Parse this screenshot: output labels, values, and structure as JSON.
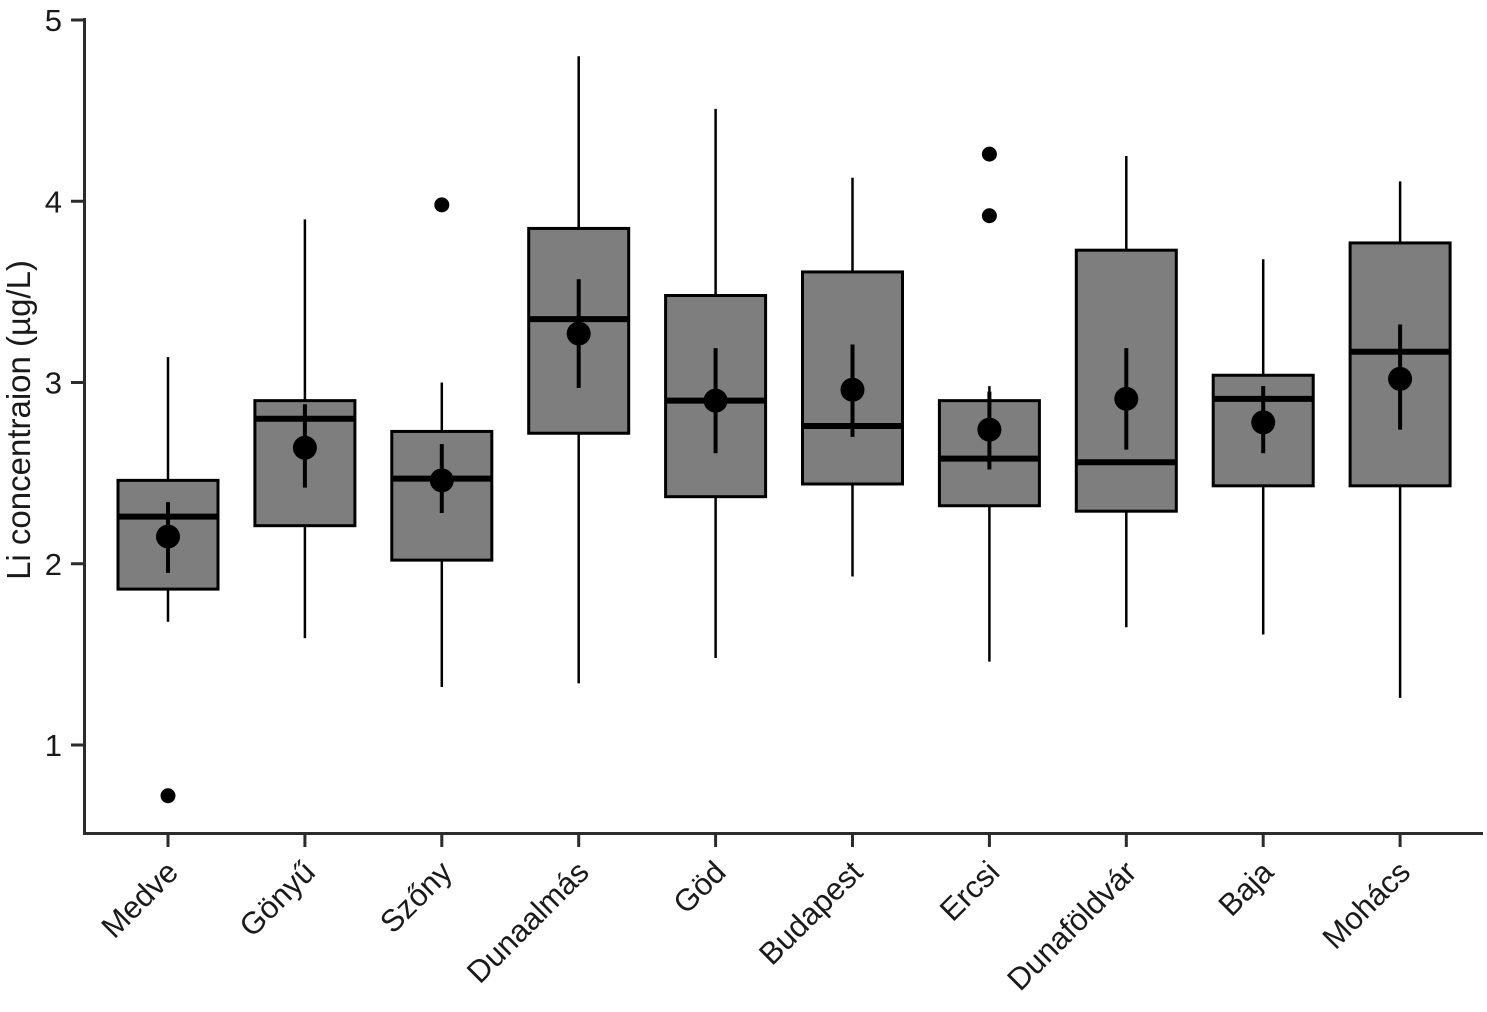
{
  "chart_data": {
    "type": "boxplot",
    "title": "",
    "xlabel": "",
    "ylabel": "Li concentraion (µg/L)",
    "ylim": [
      0.5,
      5
    ],
    "yticks": [
      1,
      2,
      3,
      4,
      5
    ],
    "grid": false,
    "legend": "none",
    "box_fill": "#7e7e7e",
    "stroke_color": "#000000",
    "categories": [
      "Medve",
      "Gönyű",
      "Szőny",
      "Dunaalmás",
      "Göd",
      "Budapest",
      "Ercsi",
      "Dunaföldvár",
      "Baja",
      "Mohács"
    ],
    "boxes": [
      {
        "site": "Medve",
        "whisker_low": 1.68,
        "q1": 1.86,
        "median": 2.26,
        "q3": 2.46,
        "whisker_high": 3.14,
        "mean": 2.15,
        "mean_err": [
          1.95,
          2.34
        ],
        "outliers": [
          0.72
        ]
      },
      {
        "site": "Gönyű",
        "whisker_low": 1.59,
        "q1": 2.21,
        "median": 2.8,
        "q3": 2.9,
        "whisker_high": 3.9,
        "mean": 2.64,
        "mean_err": [
          2.42,
          2.88
        ],
        "outliers": []
      },
      {
        "site": "Szőny",
        "whisker_low": 1.32,
        "q1": 2.02,
        "median": 2.47,
        "q3": 2.73,
        "whisker_high": 3.0,
        "mean": 2.46,
        "mean_err": [
          2.28,
          2.66
        ],
        "outliers": [
          3.98
        ]
      },
      {
        "site": "Dunaalmás",
        "whisker_low": 1.34,
        "q1": 2.72,
        "median": 3.35,
        "q3": 3.85,
        "whisker_high": 4.8,
        "mean": 3.27,
        "mean_err": [
          2.97,
          3.57
        ],
        "outliers": []
      },
      {
        "site": "Göd",
        "whisker_low": 1.48,
        "q1": 2.37,
        "median": 2.9,
        "q3": 3.48,
        "whisker_high": 4.51,
        "mean": 2.9,
        "mean_err": [
          2.61,
          3.19
        ],
        "outliers": []
      },
      {
        "site": "Budapest",
        "whisker_low": 1.93,
        "q1": 2.44,
        "median": 2.76,
        "q3": 3.61,
        "whisker_high": 4.13,
        "mean": 2.96,
        "mean_err": [
          2.7,
          3.21
        ],
        "outliers": []
      },
      {
        "site": "Ercsi",
        "whisker_low": 1.46,
        "q1": 2.32,
        "median": 2.58,
        "q3": 2.9,
        "whisker_high": 2.98,
        "mean": 2.74,
        "mean_err": [
          2.52,
          2.95
        ],
        "outliers": [
          3.92,
          4.26
        ]
      },
      {
        "site": "Dunaföldvár",
        "whisker_low": 1.65,
        "q1": 2.29,
        "median": 2.56,
        "q3": 3.73,
        "whisker_high": 4.25,
        "mean": 2.91,
        "mean_err": [
          2.63,
          3.19
        ],
        "outliers": []
      },
      {
        "site": "Baja",
        "whisker_low": 1.61,
        "q1": 2.43,
        "median": 2.91,
        "q3": 3.04,
        "whisker_high": 3.68,
        "mean": 2.78,
        "mean_err": [
          2.61,
          2.98
        ],
        "outliers": []
      },
      {
        "site": "Mohács",
        "whisker_low": 1.26,
        "q1": 2.43,
        "median": 3.17,
        "q3": 3.77,
        "whisker_high": 4.11,
        "mean": 3.02,
        "mean_err": [
          2.74,
          3.32
        ],
        "outliers": []
      }
    ]
  }
}
